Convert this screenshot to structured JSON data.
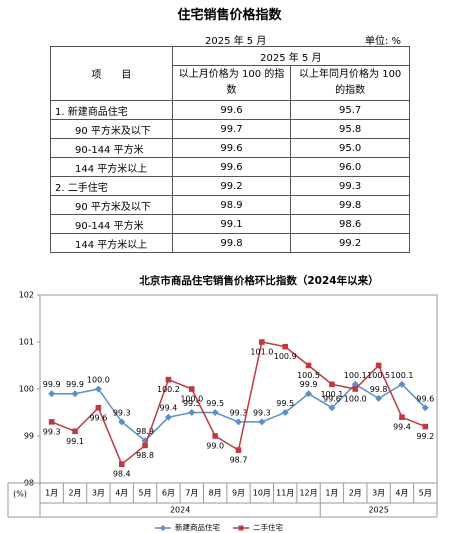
{
  "title": "住宅销售价格指数",
  "period": "2025 年 5 月",
  "unit": "单位: %",
  "table": {
    "item_header": "项　　目",
    "period_header": "2025 年 5 月",
    "columns": [
      "以上月价格为 100 的指数",
      "以上年同月价格为 100 的指数"
    ],
    "rows": [
      [
        "1. 新建商品住宅",
        "99.6",
        "95.7"
      ],
      [
        "90 平方米及以下",
        "99.7",
        "95.8"
      ],
      [
        "90-144 平方米",
        "99.6",
        "95.0"
      ],
      [
        "144 平方米以上",
        "99.6",
        "96.0"
      ],
      [
        "2. 二手住宅",
        "99.2",
        "99.3"
      ],
      [
        "90 平方米及以下",
        "98.9",
        "99.8"
      ],
      [
        "90-144 平方米",
        "99.1",
        "98.6"
      ],
      [
        "144 平方米以上",
        "99.8",
        "99.2"
      ]
    ]
  },
  "chart_data": {
    "type": "line",
    "title": "北京市商品住宅销售价格环比指数（2024年以来）",
    "y_label": "(%)",
    "categories": [
      "1月",
      "2月",
      "3月",
      "4月",
      "5月",
      "6月",
      "7月",
      "8月",
      "9月",
      "10月",
      "11月",
      "12月",
      "1月",
      "2月",
      "3月",
      "4月",
      "5月"
    ],
    "x_groups": [
      "2024",
      "2025"
    ],
    "ylim": [
      98,
      102
    ],
    "yticks": [
      98,
      99,
      100,
      101,
      102
    ],
    "series": [
      {
        "name": "新建商品住宅",
        "color": "#5b8fc9",
        "marker": "diamond",
        "values": [
          99.9,
          99.9,
          100.0,
          99.3,
          98.9,
          99.4,
          99.5,
          99.5,
          99.3,
          99.3,
          99.5,
          99.9,
          99.6,
          100.1,
          99.8,
          100.1,
          99.6
        ],
        "value_labels": [
          "99.9",
          "99.9",
          "100.0",
          "99.3",
          "98.9",
          "99.4",
          "99.5",
          "99.5",
          "99.3",
          "99.3",
          "99.5",
          "99.9",
          "99.6",
          "100.1",
          "99.8",
          "100.1",
          "99.6"
        ]
      },
      {
        "name": "二手住宅",
        "color": "#c0393f",
        "marker": "square",
        "values": [
          99.3,
          99.1,
          99.6,
          98.4,
          98.8,
          100.2,
          100.0,
          99.0,
          98.7,
          101.0,
          100.9,
          100.5,
          100.1,
          100.0,
          100.5,
          99.4,
          99.2
        ],
        "value_labels": [
          "99.3",
          "99.1",
          "99.6",
          "98.4",
          "98.8",
          "100.2",
          "100.0",
          "99.0",
          "98.7",
          "101.0",
          "100.9",
          "100.5",
          "100.1",
          "100.0",
          "100.5",
          "99.4",
          "99.2"
        ]
      }
    ]
  }
}
